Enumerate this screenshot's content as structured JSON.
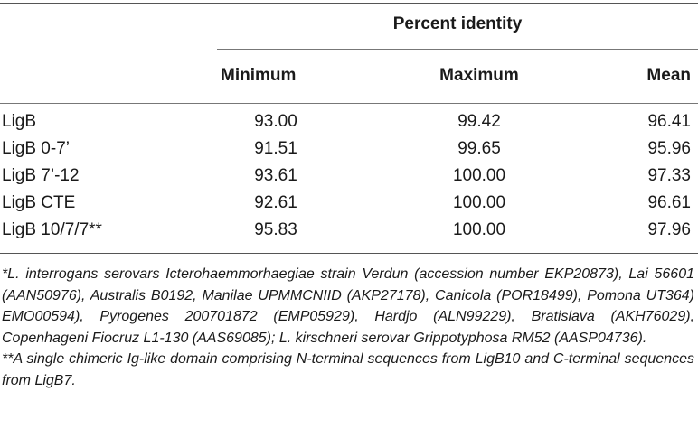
{
  "table": {
    "group_header": "Percent identity",
    "columns": [
      "Minimum",
      "Maximum",
      "Mean"
    ],
    "rows": [
      {
        "name": "LigB",
        "min": "93.00",
        "max": "99.42",
        "mean": "96.41"
      },
      {
        "name": "LigB 0-7’",
        "min": "91.51",
        "max": "99.65",
        "mean": "95.96"
      },
      {
        "name": "LigB 7’-12",
        "min": "93.61",
        "max": "100.00",
        "mean": "97.33"
      },
      {
        "name": "LigB CTE",
        "min": "92.61",
        "max": "100.00",
        "mean": "96.61"
      },
      {
        "name": "LigB 10/7/7**",
        "min": "95.83",
        "max": "100.00",
        "mean": "97.96"
      }
    ]
  },
  "footnotes": {
    "note1": "*L. interrogans serovars Icterohaemmorhaegiae strain Verdun (accession number EKP20873), Lai 56601 (AAN50976), Australis B0192, Manilae UPMMCNIID (AKP27178), Canicola (POR18499), Pomona UT364) EMO00594), Pyrogenes 200701872 (EMP05929), Hardjo (ALN99229), Bratislava (AKH76029), Copenhageni Fiocruz L1-130 (AAS69085); L. kirschneri serovar Grippotyphosa RM52 (AASP04736).",
    "note2": "**A single chimeric Ig-like domain comprising N-terminal sequences from LigB10 and C-terminal sequences from LigB7."
  }
}
